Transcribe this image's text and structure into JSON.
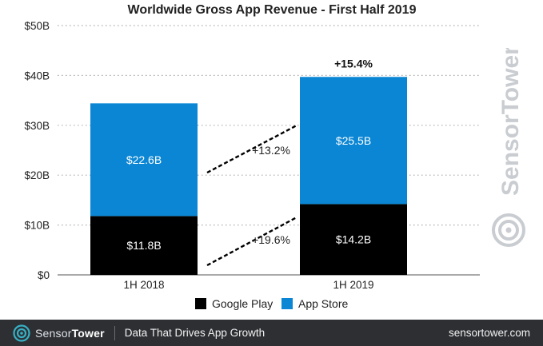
{
  "chart_data": {
    "type": "bar",
    "stacked": true,
    "title": "Worldwide Gross App Revenue - First Half 2019",
    "categories": [
      "1H 2018",
      "1H 2019"
    ],
    "series": [
      {
        "name": "Google Play",
        "color": "#000000",
        "values": [
          11.8,
          14.2
        ],
        "labels": [
          "$11.8B",
          "$14.2B"
        ]
      },
      {
        "name": "App Store",
        "color": "#0a86d4",
        "values": [
          22.6,
          25.5
        ],
        "labels": [
          "$22.6B",
          "$25.5B"
        ]
      }
    ],
    "yticks": [
      "$0",
      "$10B",
      "$20B",
      "$30B",
      "$40B",
      "$50B"
    ],
    "ytick_values": [
      0,
      10,
      20,
      30,
      40,
      50
    ],
    "ylim": [
      0,
      50
    ],
    "grid": true,
    "legend_position": "bottom",
    "annotations": {
      "total_growth": "+15.4%",
      "app_store_growth": "+13.2%",
      "google_play_growth": "+19.6%"
    }
  },
  "watermark": {
    "brand": "SensorTower"
  },
  "footer": {
    "brand_part1": "Sensor",
    "brand_part2": "Tower",
    "tagline": "Data That Drives App Growth",
    "site": "sensortower.com"
  }
}
